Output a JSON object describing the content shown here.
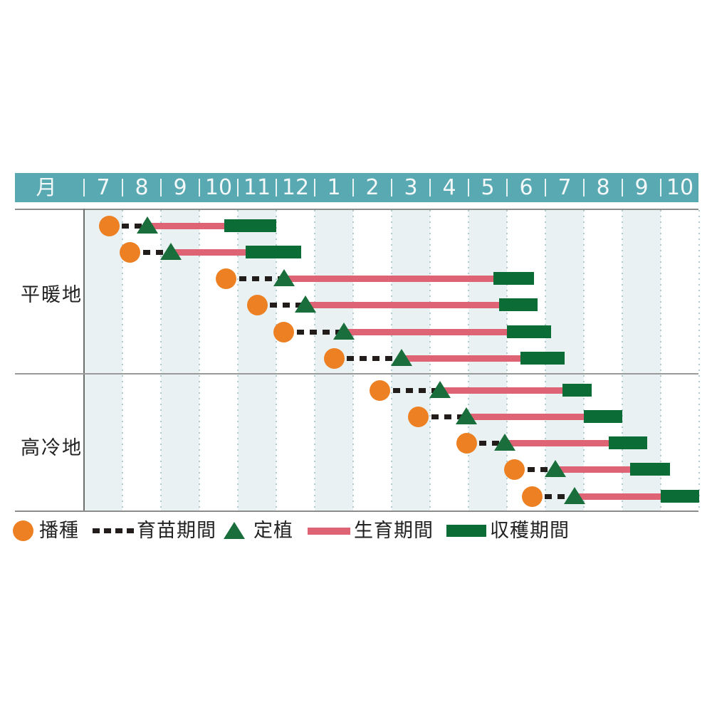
{
  "page": {
    "background": "#ffffff"
  },
  "header": {
    "axis_title": "月",
    "months": [
      "7",
      "8",
      "9",
      "10",
      "11",
      "12",
      "1",
      "2",
      "3",
      "4",
      "5",
      "6",
      "7",
      "8",
      "9",
      "10"
    ]
  },
  "legend": {
    "items": [
      {
        "icon": "sow-circle-icon",
        "label": "播種"
      },
      {
        "icon": "nursery-dash-icon",
        "label": "育苗期間"
      },
      {
        "icon": "transplant-triangle-icon",
        "label": "定植"
      },
      {
        "icon": "growth-bar-icon",
        "label": "生育期間"
      },
      {
        "icon": "harvest-bar-icon",
        "label": "収穫期間"
      }
    ]
  },
  "colors": {
    "header_teal": "#58a9b2",
    "header_text": "#f4f8f8",
    "stripe_blue": "#e9f1f3",
    "grid_dot": "#b0ccd3",
    "border_gray": "#8c8c8c",
    "axis_line_gray": "#6e6e6e",
    "sow_orange": "#ec8023",
    "nursery_black": "#221d1a",
    "transplant_green": "#1a6e3c",
    "growth_pink": "#dd6375",
    "harvest_green": "#0c6c35",
    "text_dark": "#222222"
  },
  "chart_data": {
    "type": "bar",
    "style": "gantt-planting-calendar",
    "orientation": "horizontal",
    "title": "",
    "x_axis": {
      "title": "月",
      "tick_labels": [
        "7",
        "8",
        "9",
        "10",
        "11",
        "12",
        "1",
        "2",
        "3",
        "4",
        "5",
        "6",
        "7",
        "8",
        "9",
        "10"
      ],
      "unit": "month",
      "note": "timeline runs July (year 1) through October (year 2); u=0 is the start of the first July column, 1 unit = 1 month",
      "striped_columns": "alternating light-blue stripes on columns 7,9,11,1,3,5,7,9"
    },
    "legend": [
      "播種",
      "育苗期間",
      "定植",
      "生育期間",
      "収穫期間"
    ],
    "marker_meaning": {
      "sow": "播種 — orange circle at sowing time",
      "nursery": "育苗期間 — black dashed line from sow to transplant",
      "transplant": "定植 — green triangle",
      "growth": "生育期間 — pink bar from transplant to growth_end",
      "harvest": "収穫期間 — dark green bar from growth_end to harvest_end"
    },
    "series": [
      {
        "region": "平暖地",
        "rows": [
          {
            "sow": 0.65,
            "transplant": 1.65,
            "growth_end": 3.65,
            "harvest_end": 5.0
          },
          {
            "sow": 1.2,
            "transplant": 2.25,
            "growth_end": 4.2,
            "harvest_end": 5.65
          },
          {
            "sow": 3.7,
            "transplant": 5.2,
            "growth_end": 10.65,
            "harvest_end": 11.7
          },
          {
            "sow": 4.5,
            "transplant": 5.75,
            "growth_end": 10.8,
            "harvest_end": 11.8
          },
          {
            "sow": 5.2,
            "transplant": 6.75,
            "growth_end": 11.0,
            "harvest_end": 12.15
          },
          {
            "sow": 6.5,
            "transplant": 8.25,
            "growth_end": 11.35,
            "harvest_end": 12.5
          }
        ]
      },
      {
        "region": "高冷地",
        "rows": [
          {
            "sow": 7.7,
            "transplant": 9.25,
            "growth_end": 12.45,
            "harvest_end": 13.2
          },
          {
            "sow": 8.7,
            "transplant": 9.95,
            "growth_end": 13.0,
            "harvest_end": 14.0
          },
          {
            "sow": 9.95,
            "transplant": 10.95,
            "growth_end": 13.65,
            "harvest_end": 14.65
          },
          {
            "sow": 11.2,
            "transplant": 12.25,
            "growth_end": 14.2,
            "harvest_end": 15.25
          },
          {
            "sow": 11.65,
            "transplant": 12.75,
            "growth_end": 15.0,
            "harvest_end": 16.0
          }
        ]
      }
    ]
  }
}
